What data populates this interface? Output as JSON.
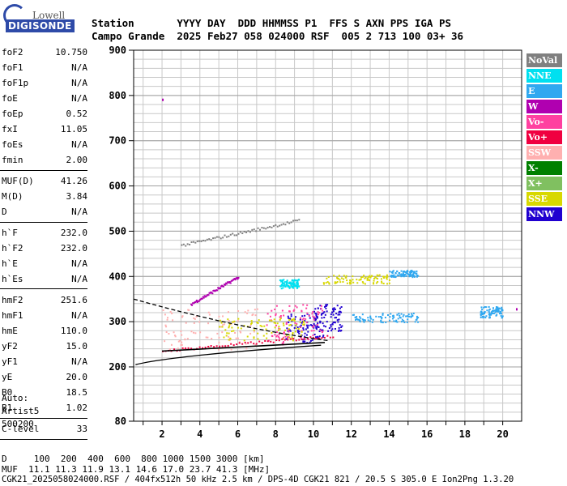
{
  "logo": {
    "brand": "Lowell",
    "product": "DIGISONDE"
  },
  "header": {
    "line1": "Station       YYYY DAY  DDD HHMMSS P1  FFS S AXN PPS IGA PS",
    "line2": "Campo Grande  2025 Feb27 058 024000 RSF  005 2 713 100 03+ 36"
  },
  "params": [
    {
      "k": "foF2",
      "v": "10.750"
    },
    {
      "k": "foF1",
      "v": "N/A"
    },
    {
      "k": "foF1p",
      "v": "N/A"
    },
    {
      "k": "foE",
      "v": "N/A"
    },
    {
      "k": "foEp",
      "v": "0.52"
    },
    {
      "k": "fxI",
      "v": "11.05"
    },
    {
      "k": "foEs",
      "v": "N/A"
    },
    {
      "k": "fmin",
      "v": "2.00"
    },
    {
      "k": "MUF(D)",
      "v": "41.26"
    },
    {
      "k": "M(D)",
      "v": "3.84"
    },
    {
      "k": "D",
      "v": "N/A"
    },
    {
      "k": "h`F",
      "v": "232.0"
    },
    {
      "k": "h`F2",
      "v": "232.0"
    },
    {
      "k": "h`E",
      "v": "N/A"
    },
    {
      "k": "h`Es",
      "v": "N/A"
    },
    {
      "k": "hmF2",
      "v": "251.6"
    },
    {
      "k": "hmF1",
      "v": "N/A"
    },
    {
      "k": "hmE",
      "v": "110.0"
    },
    {
      "k": "yF2",
      "v": "15.0"
    },
    {
      "k": "yF1",
      "v": "N/A"
    },
    {
      "k": "yE",
      "v": "20.0"
    },
    {
      "k": "B0",
      "v": "18.5"
    },
    {
      "k": "B1",
      "v": "1.02"
    },
    {
      "k": "C-level",
      "v": "33"
    }
  ],
  "auto": {
    "line1": "Auto:",
    "line2": "Artist5",
    "line3": "500200"
  },
  "footer": {
    "d_line": "D     100  200  400  600  800 1000 1500 3000 [km]",
    "muf_line": "MUF  11.1 11.3 11.9 13.1 14.6 17.0 23.7 41.3 [MHz]",
    "file_line": "CGK21_2025058024000.RSF / 404fx512h 50 kHz 2.5 km / DPS-4D CGK21 821 / 20.5 S 305.0 E Ion2Png 1.3.20"
  },
  "legend": [
    {
      "label": "NoVal",
      "color": "#808080"
    },
    {
      "label": "NNE",
      "color": "#00e0f0"
    },
    {
      "label": "E",
      "color": "#30a8f0"
    },
    {
      "label": "W",
      "color": "#b000b0"
    },
    {
      "label": "Vo-",
      "color": "#ff40a0"
    },
    {
      "label": "Vo+",
      "color": "#f00040"
    },
    {
      "label": "SSW",
      "color": "#ffb0b0"
    },
    {
      "label": "X-",
      "color": "#008000"
    },
    {
      "label": "X+",
      "color": "#80c060"
    },
    {
      "label": "SSE",
      "color": "#d8d800"
    },
    {
      "label": "NNW",
      "color": "#2000d0"
    }
  ],
  "chart_data": {
    "type": "scatter",
    "xlabel": "",
    "ylabel": "",
    "xlim": [
      0.5,
      21
    ],
    "ylim": [
      80,
      900
    ],
    "x_ticks": [
      2,
      4,
      6,
      8,
      10,
      12,
      14,
      16,
      18,
      20
    ],
    "y_ticks": [
      80,
      200,
      300,
      400,
      500,
      600,
      700,
      800,
      900
    ],
    "grid": true,
    "traces": [
      {
        "name": "W",
        "color": "#b000b0",
        "x0": 3.5,
        "y0": 340,
        "x1": 6.0,
        "y1": 400
      },
      {
        "name": "NoVal",
        "color": "#808080",
        "x0": 3.0,
        "y0": 470,
        "x1": 9.2,
        "y1": 525
      },
      {
        "name": "Vo+",
        "color": "#f00040",
        "x0": 2.0,
        "y0": 237,
        "x1": 11.0,
        "y1": 270
      }
    ],
    "clusters": [
      {
        "name": "NNE",
        "color": "#00e0f0",
        "x": [
          8.2,
          9.2
        ],
        "y": [
          375,
          395
        ]
      },
      {
        "name": "SSE",
        "color": "#d8d800",
        "x": [
          10.5,
          14.0
        ],
        "y": [
          385,
          405
        ]
      },
      {
        "name": "E",
        "color": "#30a8f0",
        "x": [
          14.0,
          15.5
        ],
        "y": [
          400,
          415
        ]
      },
      {
        "name": "E",
        "color": "#30a8f0",
        "x": [
          12.0,
          15.5
        ],
        "y": [
          300,
          320
        ]
      },
      {
        "name": "E",
        "color": "#30a8f0",
        "x": [
          18.8,
          20.0
        ],
        "y": [
          310,
          335
        ]
      },
      {
        "name": "NNW",
        "color": "#2000d0",
        "x": [
          10.0,
          11.5
        ],
        "y": [
          280,
          340
        ]
      },
      {
        "name": "NNW",
        "color": "#2000d0",
        "x": [
          8.5,
          10.5
        ],
        "y": [
          255,
          320
        ]
      },
      {
        "name": "SSW",
        "color": "#ffb0b0",
        "x": [
          2.0,
          7.0
        ],
        "y": [
          240,
          330
        ]
      },
      {
        "name": "Vo-",
        "color": "#ff40a0",
        "x": [
          7.5,
          10.5
        ],
        "y": [
          250,
          340
        ]
      },
      {
        "name": "SSE",
        "color": "#d8d800",
        "x": [
          5.0,
          9.5
        ],
        "y": [
          260,
          310
        ]
      }
    ],
    "outliers": [
      {
        "name": "W",
        "color": "#b000b0",
        "x": 2.0,
        "y": 793
      },
      {
        "name": "W",
        "color": "#b000b0",
        "x": 20.7,
        "y": 330
      }
    ]
  }
}
